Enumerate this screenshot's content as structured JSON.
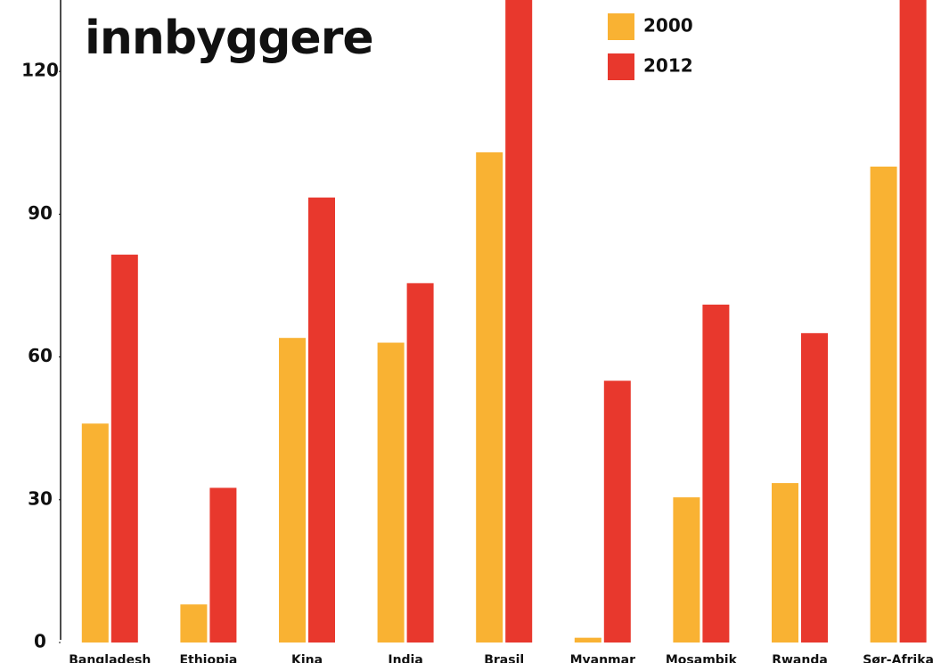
{
  "chart_data": {
    "type": "bar",
    "title": "innbyggere",
    "categories": [
      "Bangladesh",
      "Ethiopia",
      "Kina",
      "India",
      "Brasil",
      "Myanmar",
      "Mosambik",
      "Rwanda",
      "Sør-Afrika"
    ],
    "series": [
      {
        "name": "2000",
        "color": "#f9b233",
        "values": [
          46,
          8,
          64,
          63,
          103,
          1,
          30.5,
          33.5,
          100
        ]
      },
      {
        "name": "2012",
        "color": "#e8382d",
        "values": [
          81.5,
          32.5,
          93.5,
          75.5,
          140,
          55,
          71,
          65,
          140
        ]
      }
    ],
    "ylim": [
      0,
      135
    ],
    "yticks": [
      0,
      30,
      60,
      90,
      120
    ],
    "grid": false,
    "legend": "top"
  }
}
